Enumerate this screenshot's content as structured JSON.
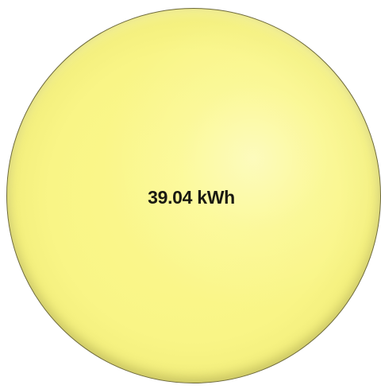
{
  "energy_bubble": {
    "value_label": "39.04 kWh",
    "fill_color": "#f9f586",
    "outline_color": "#6e6a3c"
  }
}
